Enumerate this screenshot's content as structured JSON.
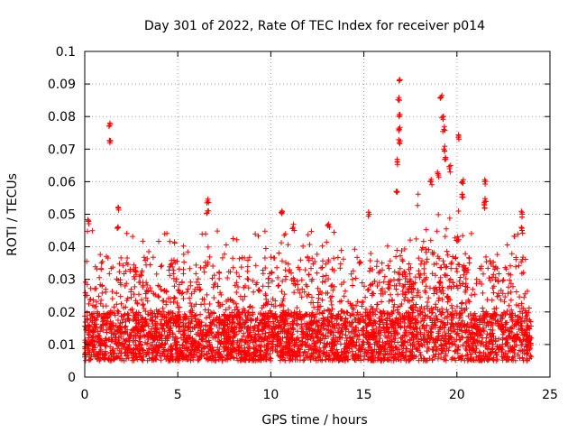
{
  "chart_data": {
    "type": "scatter",
    "title": "Day 301 of 2022, Rate Of TEC Index for receiver p014",
    "xlabel": "GPS time / hours",
    "ylabel": "ROTI / TECUs",
    "xlim": [
      0,
      25
    ],
    "ylim": [
      0,
      0.1
    ],
    "x_ticks": [
      "0",
      "5",
      "10",
      "15",
      "20",
      "25"
    ],
    "y_ticks": [
      "0",
      "0.01",
      "0.02",
      "0.03",
      "0.04",
      "0.05",
      "0.06",
      "0.07",
      "0.08",
      "0.09",
      "0.1"
    ],
    "grid": true,
    "marker": "+",
    "color": "#ff0000",
    "data_coverage_hours": [
      0,
      24
    ],
    "baseline_band": [
      0.005,
      0.02
    ],
    "series": [
      {
        "name": "p014",
        "notable_points": [
          {
            "x": 0.2,
            "y": 0.048
          },
          {
            "x": 1.35,
            "y": 0.078
          },
          {
            "x": 1.35,
            "y": 0.072
          },
          {
            "x": 1.8,
            "y": 0.052
          },
          {
            "x": 1.8,
            "y": 0.046
          },
          {
            "x": 6.6,
            "y": 0.054
          },
          {
            "x": 6.6,
            "y": 0.051
          },
          {
            "x": 10.6,
            "y": 0.051
          },
          {
            "x": 11.2,
            "y": 0.046
          },
          {
            "x": 13.1,
            "y": 0.047
          },
          {
            "x": 15.3,
            "y": 0.05
          },
          {
            "x": 16.9,
            "y": 0.091
          },
          {
            "x": 16.9,
            "y": 0.085
          },
          {
            "x": 16.9,
            "y": 0.08
          },
          {
            "x": 16.9,
            "y": 0.076
          },
          {
            "x": 16.9,
            "y": 0.072
          },
          {
            "x": 16.8,
            "y": 0.066
          },
          {
            "x": 16.8,
            "y": 0.057
          },
          {
            "x": 18.6,
            "y": 0.06
          },
          {
            "x": 19.0,
            "y": 0.062
          },
          {
            "x": 19.15,
            "y": 0.086
          },
          {
            "x": 19.25,
            "y": 0.08
          },
          {
            "x": 19.3,
            "y": 0.076
          },
          {
            "x": 19.3,
            "y": 0.07
          },
          {
            "x": 19.4,
            "y": 0.067
          },
          {
            "x": 19.6,
            "y": 0.064
          },
          {
            "x": 20.1,
            "y": 0.074
          },
          {
            "x": 20.3,
            "y": 0.06
          },
          {
            "x": 20.3,
            "y": 0.056
          },
          {
            "x": 21.5,
            "y": 0.06
          },
          {
            "x": 21.5,
            "y": 0.054
          },
          {
            "x": 21.5,
            "y": 0.052
          },
          {
            "x": 23.5,
            "y": 0.05
          },
          {
            "x": 23.5,
            "y": 0.045
          }
        ]
      }
    ]
  }
}
